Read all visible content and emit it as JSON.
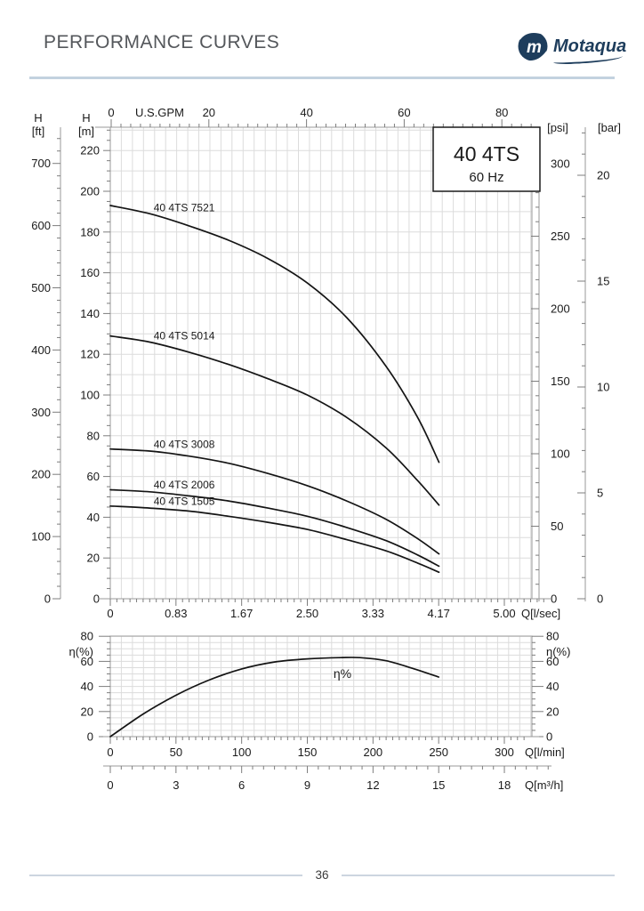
{
  "header": {
    "title": "PERFORMANCE CURVES",
    "brand": "Motaqua"
  },
  "model_box": {
    "model": "40 4TS",
    "frequency": "60 Hz"
  },
  "footer": {
    "page": "36"
  },
  "chart_data": [
    {
      "id": "head-capacity",
      "type": "line",
      "title": "40 4TS 60 Hz head-capacity curves",
      "axes": {
        "top": {
          "unit": "U.S.GPM",
          "ticks": [
            0,
            20,
            40,
            60,
            80
          ]
        },
        "bottom": {
          "unit": "Q[l/sec]",
          "tick_labels": [
            "0",
            "0.83",
            "1.67",
            "2.50",
            "3.33",
            "4.17",
            "5.00"
          ],
          "tick_values": [
            0,
            0.8333,
            1.6667,
            2.5,
            3.3333,
            4.1667,
            5.0
          ]
        },
        "left_inner": {
          "name": "H",
          "unit": "[m]",
          "ticks": [
            0,
            20,
            40,
            60,
            80,
            100,
            120,
            140,
            160,
            180,
            200,
            220
          ]
        },
        "left_outer": {
          "name": "H",
          "unit": "[ft]",
          "ticks": [
            0,
            100,
            200,
            300,
            400,
            500,
            600,
            700
          ]
        },
        "right_inner": {
          "unit": "[psi]",
          "ticks": [
            0,
            50,
            100,
            150,
            200,
            250,
            300
          ]
        },
        "right_outer": {
          "unit": "[bar]",
          "ticks": [
            0,
            5,
            10,
            15,
            20
          ]
        }
      },
      "series": [
        {
          "name": "40 4TS 7521",
          "points": [
            [
              0,
              193
            ],
            [
              0.5,
              189
            ],
            [
              1,
              183
            ],
            [
              1.5,
              176
            ],
            [
              2,
              167
            ],
            [
              2.5,
              155
            ],
            [
              3,
              138
            ],
            [
              3.5,
              114
            ],
            [
              3.9,
              89
            ],
            [
              4.17,
              67
            ]
          ]
        },
        {
          "name": "40 4TS 5014",
          "points": [
            [
              0,
              129
            ],
            [
              0.5,
              126
            ],
            [
              1,
              121
            ],
            [
              1.5,
              115
            ],
            [
              2,
              108
            ],
            [
              2.5,
              100
            ],
            [
              3,
              89
            ],
            [
              3.5,
              74
            ],
            [
              3.9,
              58
            ],
            [
              4.17,
              46
            ]
          ]
        },
        {
          "name": "40 4TS 3008",
          "points": [
            [
              0,
              73.5
            ],
            [
              0.5,
              72.5
            ],
            [
              1,
              70
            ],
            [
              1.5,
              66.5
            ],
            [
              2,
              61.5
            ],
            [
              2.5,
              55.5
            ],
            [
              3,
              48
            ],
            [
              3.5,
              39
            ],
            [
              3.9,
              29.5
            ],
            [
              4.17,
              22
            ]
          ]
        },
        {
          "name": "40 4TS 2006",
          "points": [
            [
              0,
              53.5
            ],
            [
              0.5,
              52.5
            ],
            [
              1,
              50.5
            ],
            [
              1.5,
              48
            ],
            [
              2,
              44.5
            ],
            [
              2.5,
              40.5
            ],
            [
              3,
              35
            ],
            [
              3.5,
              28.5
            ],
            [
              3.9,
              21.5
            ],
            [
              4.17,
              16
            ]
          ]
        },
        {
          "name": "40 4TS 1505",
          "points": [
            [
              0,
              45.5
            ],
            [
              0.5,
              44.5
            ],
            [
              1,
              43
            ],
            [
              1.5,
              40.5
            ],
            [
              2,
              37.5
            ],
            [
              2.5,
              34
            ],
            [
              3,
              29
            ],
            [
              3.5,
              23.5
            ],
            [
              3.9,
              17.5
            ],
            [
              4.17,
              13
            ]
          ]
        }
      ]
    },
    {
      "id": "efficiency",
      "type": "line",
      "axes": {
        "left": {
          "unit": "η(%)",
          "ticks": [
            0,
            20,
            40,
            60,
            80
          ]
        },
        "right": {
          "unit": "η(%)",
          "ticks": [
            0,
            20,
            40,
            60,
            80
          ]
        },
        "bottom": {
          "unit": "Q[l/min]",
          "ticks": [
            0,
            50,
            100,
            150,
            200,
            250,
            300
          ]
        },
        "bottom_outer": {
          "unit": "Q[m³/h]",
          "ticks": [
            0,
            3,
            6,
            9,
            12,
            15,
            18
          ]
        }
      },
      "series": [
        {
          "name": "η%",
          "points": [
            [
              0,
              0
            ],
            [
              25,
              18
            ],
            [
              50,
              33
            ],
            [
              75,
              45
            ],
            [
              100,
              54
            ],
            [
              125,
              59.5
            ],
            [
              150,
              62
            ],
            [
              175,
              63
            ],
            [
              190,
              63
            ],
            [
              210,
              60.5
            ],
            [
              230,
              54.5
            ],
            [
              250,
              47.5
            ]
          ]
        }
      ]
    }
  ]
}
